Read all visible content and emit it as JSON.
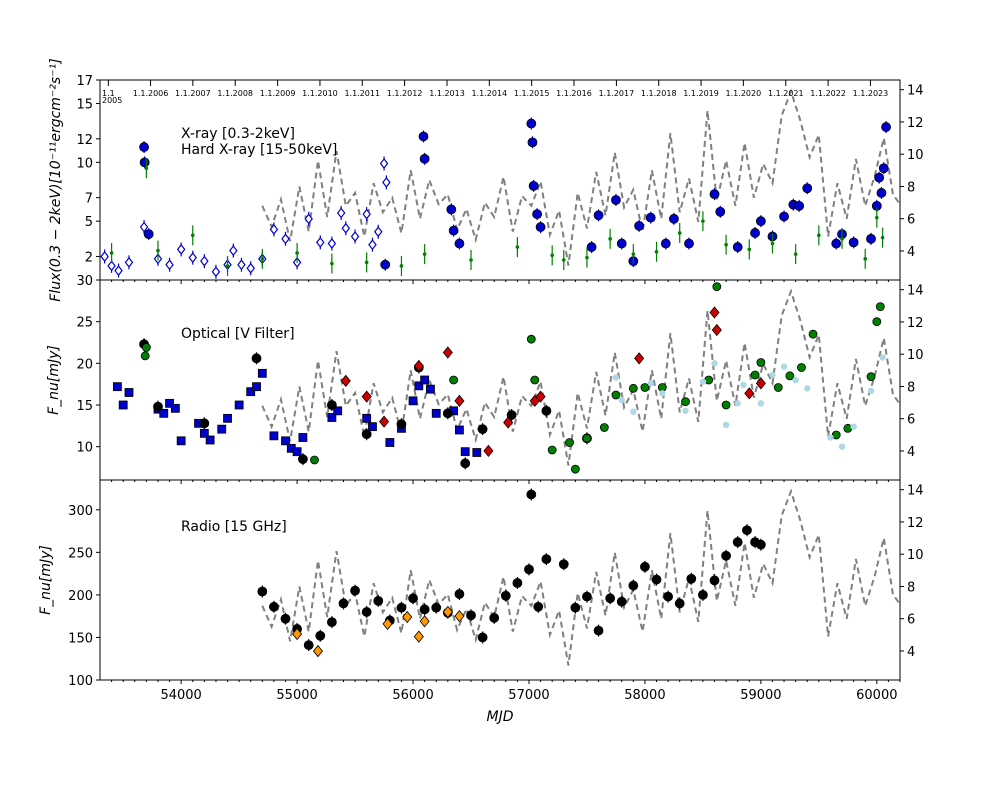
{
  "figure": {
    "xlabel": "MJD"
  },
  "shared": {
    "x_range": [
      53300,
      60200
    ],
    "x_ticks": [
      54000,
      55000,
      56000,
      57000,
      58000,
      59000,
      60000
    ],
    "date_labels": [
      {
        "mjd": 53372,
        "text": "1.1"
      },
      {
        "mjd": 53372,
        "text": "2005"
      },
      {
        "mjd": 53736,
        "text": "1.1.2006"
      },
      {
        "mjd": 54101,
        "text": "1.1.2007"
      },
      {
        "mjd": 54466,
        "text": "1.1.2008"
      },
      {
        "mjd": 54832,
        "text": "1.1.2009"
      },
      {
        "mjd": 55197,
        "text": "1.1.2010"
      },
      {
        "mjd": 55562,
        "text": "1.1.2011"
      },
      {
        "mjd": 55927,
        "text": "1.1.2012"
      },
      {
        "mjd": 56293,
        "text": "1.1.2013"
      },
      {
        "mjd": 56658,
        "text": "1.1.2014"
      },
      {
        "mjd": 57023,
        "text": "1.1.2015"
      },
      {
        "mjd": 57388,
        "text": "1.1.2016"
      },
      {
        "mjd": 57754,
        "text": "1.1.2017"
      },
      {
        "mjd": 58119,
        "text": "1.1.2018"
      },
      {
        "mjd": 58484,
        "text": "1.1.2019"
      },
      {
        "mjd": 58849,
        "text": "1.1.2020"
      },
      {
        "mjd": 59215,
        "text": "1.1.2021"
      },
      {
        "mjd": 59580,
        "text": "1.1.2022"
      },
      {
        "mjd": 59945,
        "text": "1.1.2023"
      }
    ],
    "gray_dashed_curve": {
      "ylim": [
        2.2,
        14.6
      ],
      "ticks": [
        4,
        6,
        8,
        10,
        12,
        14
      ],
      "x": [
        54700,
        54780,
        54860,
        54940,
        55020,
        55100,
        55180,
        55260,
        55340,
        55420,
        55500,
        55580,
        55660,
        55740,
        55820,
        55900,
        55980,
        56060,
        56140,
        56220,
        56300,
        56380,
        56460,
        56540,
        56620,
        56700,
        56780,
        56860,
        56940,
        57020,
        57100,
        57180,
        57260,
        57340,
        57420,
        57500,
        57580,
        57660,
        57740,
        57820,
        57900,
        57980,
        58060,
        58140,
        58220,
        58300,
        58380,
        58460,
        58540,
        58620,
        58700,
        58780,
        58860,
        58940,
        59020,
        59100,
        59180,
        59260,
        59340,
        59420,
        59500,
        59580,
        59660,
        59740,
        59820,
        59900,
        59980,
        60060,
        60140,
        60200
      ],
      "y": [
        6.8,
        5.5,
        7.2,
        4.6,
        8.0,
        5.2,
        9.6,
        6.1,
        10.2,
        6.8,
        7.6,
        4.9,
        8.2,
        6.4,
        7.3,
        5.1,
        9.0,
        6.0,
        8.4,
        6.9,
        7.5,
        5.3,
        6.6,
        4.7,
        7.0,
        6.1,
        8.6,
        5.2,
        7.4,
        6.8,
        8.3,
        5.0,
        6.5,
        3.1,
        7.6,
        5.4,
        8.9,
        6.2,
        10.1,
        6.7,
        7.8,
        5.2,
        9.0,
        6.0,
        11.3,
        6.4,
        8.5,
        5.8,
        12.7,
        7.1,
        9.6,
        6.8,
        10.7,
        7.3,
        9.4,
        8.2,
        12.4,
        13.9,
        12.1,
        9.8,
        11.2,
        4.9,
        8.2,
        6.0,
        9.7,
        6.8,
        8.6,
        11.0,
        7.5,
        6.9
      ]
    }
  },
  "panels": [
    {
      "type": "scatter",
      "ylabel": "Flux(0.3 − 2keV)[10⁻¹¹ergcm⁻²s⁻¹]",
      "annotations": [
        "X-ray [0.3-2keV]",
        "Hard X-ray [15-50keV]"
      ],
      "ylim": [
        0,
        17
      ],
      "yticks": [
        2,
        5,
        7,
        10,
        12,
        15,
        17
      ],
      "series": [
        {
          "name": "X-ray [0.3-2keV] (Swift-XRT)",
          "marker": "circle",
          "color": "#0000cc",
          "x": [
            53680,
            53685,
            53720,
            55760,
            56090,
            56100,
            56330,
            56350,
            56400,
            57020,
            57030,
            57040,
            57070,
            57100,
            57540,
            57600,
            57750,
            57800,
            57900,
            57950,
            58050,
            58180,
            58250,
            58380,
            58600,
            58650,
            58800,
            58950,
            59000,
            59100,
            59200,
            59280,
            59330,
            59400,
            59650,
            59700,
            59800,
            59950,
            60000,
            60020,
            60040,
            60060,
            60080
          ],
          "y": [
            11.3,
            10.0,
            3.9,
            1.3,
            12.2,
            10.3,
            6.0,
            4.2,
            3.1,
            13.3,
            11.7,
            8.0,
            5.6,
            4.5,
            2.8,
            5.5,
            6.8,
            3.1,
            1.6,
            4.6,
            5.3,
            3.1,
            5.2,
            3.1,
            7.3,
            5.8,
            2.8,
            4.0,
            5.0,
            3.7,
            5.4,
            6.4,
            6.3,
            7.8,
            3.1,
            3.9,
            3.2,
            3.5,
            6.3,
            8.7,
            7.4,
            9.5,
            13.0
          ]
        },
        {
          "name": "X-ray (open diamonds)",
          "marker": "diamond-open",
          "color": "#0000cc",
          "x": [
            53340,
            53400,
            53460,
            53550,
            53680,
            53800,
            53900,
            54000,
            54100,
            54200,
            54300,
            54400,
            54450,
            54520,
            54600,
            54700,
            54800,
            54900,
            55000,
            55100,
            55200,
            55300,
            55380,
            55420,
            55500,
            55600,
            55650,
            55700,
            55750,
            55770
          ],
          "y": [
            2.0,
            1.2,
            0.8,
            1.5,
            4.5,
            1.8,
            1.3,
            2.6,
            1.9,
            1.6,
            0.7,
            1.3,
            2.5,
            1.3,
            1.0,
            1.8,
            4.3,
            3.5,
            1.5,
            5.2,
            3.2,
            3.1,
            5.7,
            4.4,
            3.7,
            5.6,
            3.0,
            4.1,
            9.9,
            8.3
          ]
        },
        {
          "name": "Hard X-ray [15-50keV] (Swift-BAT)",
          "marker": "point",
          "color": "#007f00",
          "x": [
            53400,
            53700,
            53800,
            54100,
            54400,
            54700,
            55000,
            55300,
            55600,
            55900,
            56100,
            56500,
            56900,
            57200,
            57300,
            57500,
            57700,
            57900,
            58100,
            58300,
            58500,
            58700,
            58900,
            59100,
            59300,
            59500,
            59700,
            59900,
            60000,
            60050
          ],
          "y": [
            2.3,
            9.5,
            2.5,
            3.8,
            1.2,
            1.8,
            2.3,
            1.4,
            1.5,
            1.2,
            2.2,
            1.7,
            2.8,
            2.1,
            1.7,
            1.9,
            3.5,
            2.2,
            2.4,
            4.0,
            5.0,
            3.0,
            2.6,
            3.1,
            2.2,
            3.8,
            3.5,
            1.8,
            5.3,
            3.6
          ]
        }
      ]
    },
    {
      "type": "scatter",
      "ylabel": "F_nu[mJy]",
      "annotations": [
        "Optical [V Filter]"
      ],
      "ylim": [
        6,
        30
      ],
      "yticks": [
        10,
        15,
        20,
        25,
        30
      ],
      "series": [
        {
          "name": "Optical squares",
          "marker": "square",
          "color": "#0000cc",
          "x": [
            53450,
            53500,
            53550,
            53800,
            53850,
            53900,
            53950,
            54000,
            54150,
            54200,
            54250,
            54350,
            54400,
            54500,
            54600,
            54650,
            54700,
            54800,
            54900,
            54950,
            55000,
            55050,
            55300,
            55350,
            55600,
            55650,
            55800,
            55900,
            56000,
            56050,
            56100,
            56150,
            56200,
            56350,
            56400,
            56450,
            56550
          ],
          "y": [
            17.2,
            15.0,
            16.5,
            14.5,
            14.0,
            15.2,
            14.6,
            10.7,
            12.8,
            11.6,
            10.8,
            12.1,
            13.4,
            15.0,
            16.6,
            17.2,
            18.8,
            11.3,
            10.7,
            9.8,
            9.4,
            11.1,
            13.5,
            14.3,
            13.4,
            12.4,
            10.5,
            12.2,
            15.5,
            17.3,
            18.0,
            16.9,
            14.0,
            14.3,
            12.0,
            9.4,
            9.3
          ]
        },
        {
          "name": "Optical black circles",
          "marker": "circle",
          "color": "#000000",
          "x": [
            53680,
            53800,
            54200,
            54650,
            55050,
            55300,
            55600,
            55900,
            56050,
            56300,
            56450,
            56600,
            56850,
            57150,
            57500
          ],
          "y": [
            22.3,
            14.8,
            12.8,
            20.6,
            8.5,
            15.0,
            11.5,
            12.7,
            19.5,
            14.0,
            8.0,
            12.1,
            13.8,
            14.3,
            11.0
          ]
        },
        {
          "name": "Optical red diamonds",
          "marker": "diamond",
          "color": "#cc0000",
          "x": [
            55420,
            55600,
            55750,
            56050,
            56300,
            56400,
            56650,
            56820,
            57050,
            57100,
            57950,
            58600,
            58620,
            58900,
            59000
          ],
          "y": [
            17.9,
            16.0,
            13.0,
            19.7,
            21.3,
            15.5,
            9.5,
            12.9,
            15.5,
            16.0,
            20.6,
            26.1,
            24.0,
            16.4,
            17.6
          ]
        },
        {
          "name": "Optical green circles",
          "marker": "circle-green",
          "color": "#008000",
          "x": [
            53690,
            53700,
            55150,
            56350,
            57020,
            57050,
            57200,
            57350,
            57400,
            57500,
            57650,
            57750,
            57900,
            58000,
            58150,
            58350,
            58550,
            58620,
            58700,
            58950,
            59000,
            59150,
            59250,
            59350,
            59450,
            59650,
            59750,
            59950,
            60000,
            60030
          ],
          "y": [
            20.9,
            21.9,
            8.4,
            18.0,
            22.9,
            18.0,
            9.6,
            10.5,
            7.3,
            11.0,
            12.3,
            16.2,
            17.0,
            17.1,
            17.1,
            15.4,
            18.0,
            29.2,
            15.0,
            18.6,
            20.1,
            17.1,
            18.5,
            19.5,
            23.5,
            11.4,
            12.2,
            18.4,
            25.0,
            26.8
          ]
        },
        {
          "name": "Optical light blue",
          "marker": "point-lightblue",
          "color": "#add8e6",
          "x": [
            57750,
            57800,
            57900,
            58050,
            58150,
            58350,
            58500,
            58600,
            58700,
            58800,
            58850,
            59000,
            59100,
            59200,
            59300,
            59400,
            59600,
            59700,
            59800,
            59950,
            60050
          ],
          "y": [
            18.3,
            15.6,
            14.2,
            17.6,
            16.4,
            14.3,
            17.8,
            20.0,
            12.6,
            15.2,
            17.4,
            15.2,
            18.6,
            19.6,
            18.0,
            17.0,
            11.1,
            10.0,
            12.4,
            16.7,
            20.7
          ]
        }
      ]
    },
    {
      "type": "scatter",
      "ylabel": "F_nu[mJy]",
      "annotations": [
        "Radio [15 GHz]"
      ],
      "ylim": [
        100,
        335
      ],
      "yticks": [
        100,
        150,
        200,
        250,
        300
      ],
      "series": [
        {
          "name": "Radio black",
          "marker": "circle",
          "color": "#000000",
          "x": [
            54700,
            54800,
            54900,
            55000,
            55100,
            55200,
            55300,
            55400,
            55500,
            55600,
            55700,
            55800,
            55900,
            56000,
            56100,
            56200,
            56300,
            56400,
            56500,
            56600,
            56700,
            56800,
            56900,
            57000,
            57020,
            57080,
            57150,
            57300,
            57400,
            57500,
            57600,
            57700,
            57800,
            57900,
            58000,
            58100,
            58200,
            58300,
            58400,
            58500,
            58600,
            58700,
            58800,
            58880,
            58950,
            59000
          ],
          "y": [
            204,
            186,
            172,
            160,
            141,
            152,
            168,
            190,
            205,
            180,
            193,
            170,
            185,
            196,
            183,
            185,
            179,
            201,
            176,
            150,
            173,
            199,
            214,
            230,
            318,
            186,
            242,
            236,
            185,
            198,
            158,
            196,
            192,
            211,
            233,
            218,
            198,
            190,
            219,
            200,
            217,
            246,
            262,
            276,
            262,
            259
          ]
        },
        {
          "name": "Radio orange diamonds",
          "marker": "diamond",
          "color": "#ff9900",
          "x": [
            55000,
            55180,
            55780,
            55950,
            56050,
            56100,
            56300,
            56400
          ],
          "y": [
            154,
            134,
            166,
            174,
            151,
            169,
            180,
            175
          ]
        }
      ]
    }
  ]
}
